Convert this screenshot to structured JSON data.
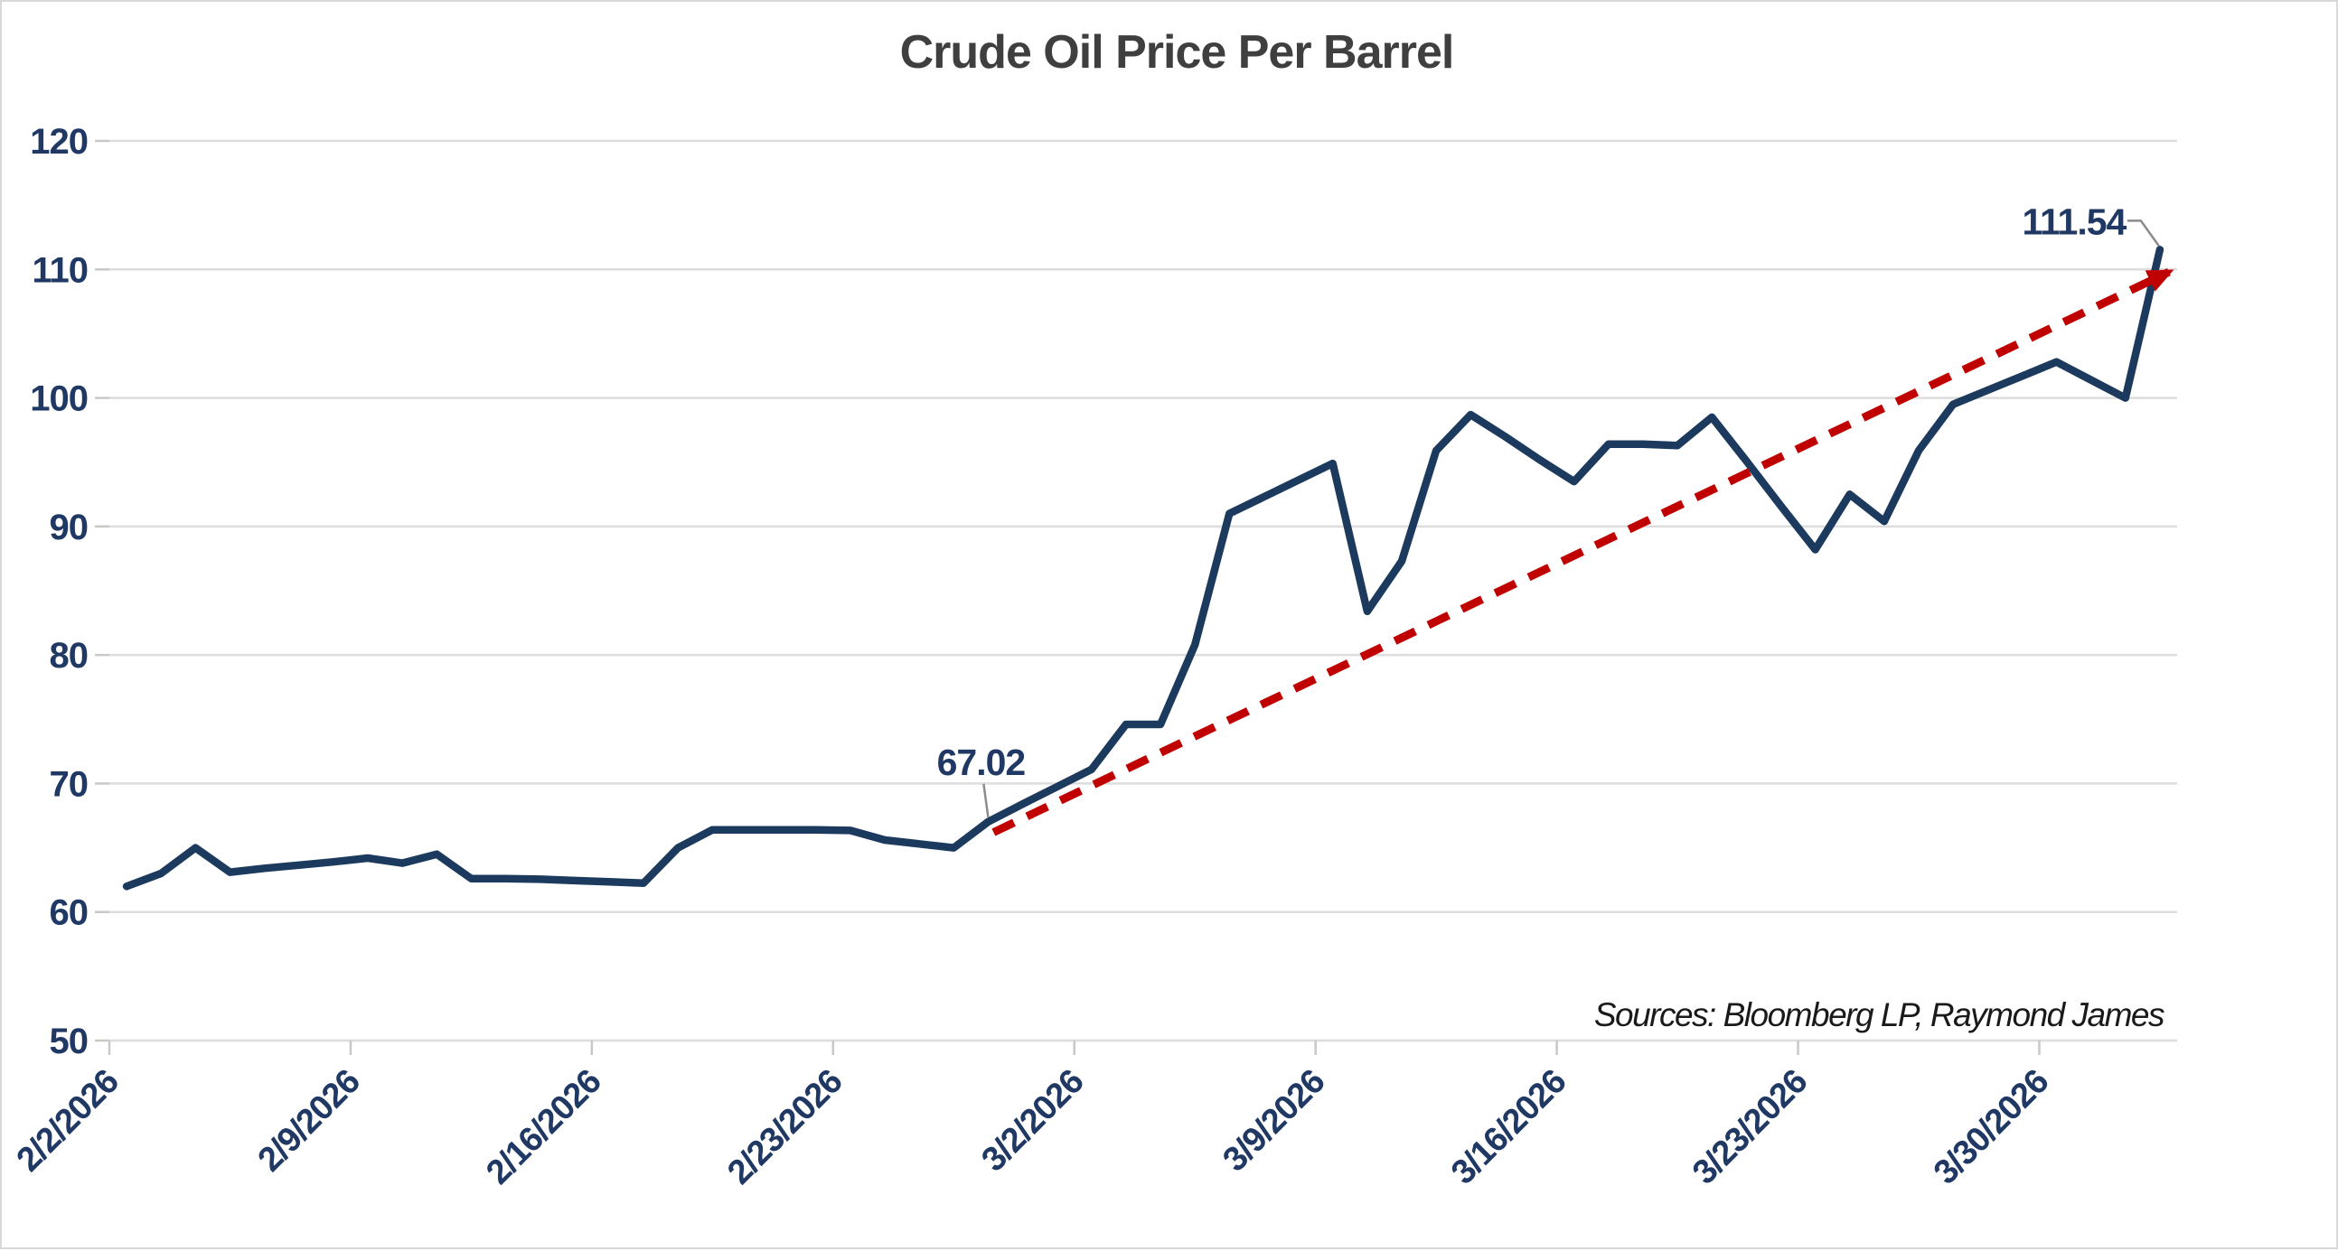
{
  "chart_data": {
    "type": "line",
    "title": "Crude Oil Price Per Barrel",
    "source_note": "Sources: Bloomberg LP, Raymond James",
    "grid": "horizontal",
    "legend": "none",
    "ylim": [
      50,
      120
    ],
    "y_ticks": [
      120,
      110,
      100,
      90,
      80,
      70,
      60,
      50
    ],
    "x_label_dates": [
      "2/2/2026",
      "2/9/2026",
      "2/16/2026",
      "2/23/2026",
      "3/2/2026",
      "3/9/2026",
      "3/16/2026",
      "3/23/2026",
      "3/30/2026"
    ],
    "dates": [
      "2/2/2026",
      "2/3/2026",
      "2/4/2026",
      "2/5/2026",
      "2/6/2026",
      "2/7/2026",
      "2/8/2026",
      "2/9/2026",
      "2/10/2026",
      "2/11/2026",
      "2/12/2026",
      "2/13/2026",
      "2/14/2026",
      "2/15/2026",
      "2/16/2026",
      "2/17/2026",
      "2/18/2026",
      "2/19/2026",
      "2/20/2026",
      "2/21/2026",
      "2/22/2026",
      "2/23/2026",
      "2/24/2026",
      "2/25/2026",
      "2/26/2026",
      "2/27/2026",
      "2/28/2026",
      "3/1/2026",
      "3/2/2026",
      "3/3/2026",
      "3/4/2026",
      "3/5/2026",
      "3/6/2026",
      "3/7/2026",
      "3/8/2026",
      "3/9/2026",
      "3/10/2026",
      "3/11/2026",
      "3/12/2026",
      "3/13/2026",
      "3/14/2026",
      "3/15/2026",
      "3/16/2026",
      "3/17/2026",
      "3/18/2026",
      "3/19/2026",
      "3/20/2026",
      "3/21/2026",
      "3/22/2026",
      "3/23/2026",
      "3/24/2026",
      "3/25/2026",
      "3/26/2026",
      "3/27/2026",
      "3/28/2026",
      "3/29/2026",
      "3/30/2026",
      "3/31/2026",
      "4/1/2026",
      "4/2/2026"
    ],
    "series": [
      {
        "name": "Crude Oil Price Per Barrel",
        "values": [
          62.0,
          63.0,
          65.0,
          63.1,
          63.4,
          63.65,
          63.9,
          64.2,
          63.8,
          64.5,
          62.6,
          62.6,
          62.55,
          62.45,
          62.35,
          62.25,
          65.0,
          66.4,
          66.4,
          66.4,
          66.4,
          66.35,
          65.6,
          65.3,
          65.0,
          67.02,
          68.4,
          69.75,
          71.1,
          74.6,
          74.6,
          80.8,
          91.0,
          92.3,
          93.6,
          94.9,
          83.4,
          87.3,
          95.9,
          98.7,
          97.0,
          95.2,
          93.5,
          96.4,
          96.4,
          96.3,
          98.5,
          95.1,
          91.6,
          88.2,
          92.5,
          90.4,
          95.9,
          99.5,
          100.6,
          101.7,
          102.8,
          101.4,
          100.0,
          111.54
        ]
      }
    ],
    "annotations": [
      {
        "label": "67.02",
        "date": "2/27/2026",
        "value": 67.02
      },
      {
        "label": "111.54",
        "date": "4/2/2026",
        "value": 111.54
      }
    ],
    "trend_arrow": {
      "style": "dashed-arrow",
      "from_date": "2/27/2026",
      "from_value": 66.2,
      "to_date": "4/2/2026",
      "to_value": 109.8
    },
    "colors": {
      "line": "#1b3a5e",
      "labels": "#1f3864",
      "trend": "#c00000",
      "grid": "#dddddd",
      "axis": "#c8c8c8",
      "title": "#3f3f3f",
      "source": "#1a1a1a",
      "callout": "#8c8c8c"
    }
  }
}
